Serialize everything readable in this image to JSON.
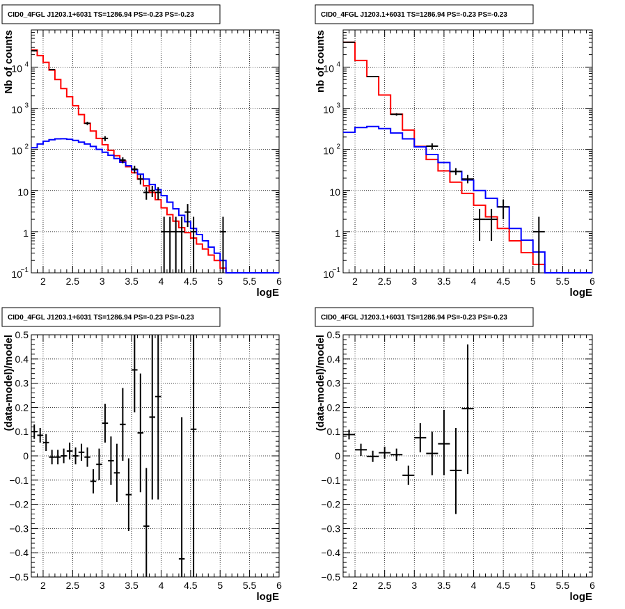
{
  "colors": {
    "data": "#000000",
    "total_model": "#ff0000",
    "component_model": "#0000ff",
    "grid": "#000000"
  },
  "chart_data": [
    {
      "type": "line",
      "title": "CID0_4FGL J1203.1+6031 TS=1286.94 PS=-0.23 PS=-0.23",
      "xlabel": "logE",
      "ylabel": "Nb of counts",
      "xlim": [
        1.8,
        6.0
      ],
      "ylim": [
        0.1,
        80000
      ],
      "y_scale": "log",
      "grid": true,
      "x_ticks": [
        2,
        2.5,
        3,
        3.5,
        4,
        4.5,
        5,
        5.5,
        6
      ],
      "x_tick_labels": [
        "2",
        "2.5",
        "3",
        "3.5",
        "4",
        "4.5",
        "5",
        "5.5",
        "6"
      ],
      "y_ticks": [
        0.1,
        1,
        10,
        100,
        1000,
        10000
      ],
      "y_tick_labels": [
        {
          "base": "10",
          "exp": "−1"
        },
        {
          "base": "1",
          "exp": ""
        },
        {
          "base": "10",
          "exp": ""
        },
        {
          "base": "10",
          "exp": "2"
        },
        {
          "base": "10",
          "exp": "3"
        },
        {
          "base": "10",
          "exp": "4"
        }
      ],
      "series": [
        {
          "style": "step",
          "color": "#ff0000",
          "edges": [
            1.8,
            1.9,
            2.0,
            2.1,
            2.2,
            2.3,
            2.4,
            2.5,
            2.6,
            2.7,
            2.8,
            2.9,
            3.0,
            3.1,
            3.2,
            3.3,
            3.4,
            3.5,
            3.6,
            3.7,
            3.8,
            3.9,
            4.0,
            4.1,
            4.2,
            4.3,
            4.4,
            4.5,
            4.6,
            4.7,
            4.8,
            4.9,
            5.0,
            5.1,
            5.2,
            5.3,
            5.4,
            5.5,
            5.6,
            5.7,
            5.8,
            5.9,
            6.0
          ],
          "values": [
            26000,
            19000,
            13000,
            8500,
            5000,
            3000,
            1900,
            1150,
            700,
            430,
            280,
            185,
            130,
            95,
            70,
            52,
            38,
            27,
            19,
            13,
            9,
            6,
            3.8,
            2.6,
            1.8,
            1.25,
            0.95,
            0.7,
            0.5,
            0.38,
            0.27,
            0.2,
            0.13,
            0.1,
            0.1,
            0.1,
            0.1,
            0.1,
            0.1,
            0.1,
            0.1,
            0.1
          ]
        },
        {
          "style": "step",
          "color": "#0000ff",
          "edges": [
            1.8,
            1.9,
            2.0,
            2.1,
            2.2,
            2.3,
            2.4,
            2.5,
            2.6,
            2.7,
            2.8,
            2.9,
            3.0,
            3.1,
            3.2,
            3.3,
            3.4,
            3.5,
            3.6,
            3.7,
            3.8,
            3.9,
            4.0,
            4.1,
            4.2,
            4.3,
            4.4,
            4.5,
            4.6,
            4.7,
            4.8,
            4.9,
            5.0,
            5.1,
            5.2,
            5.3,
            5.4,
            5.5,
            5.6,
            5.7,
            5.8,
            5.9,
            6.0
          ],
          "values": [
            110,
            135,
            158,
            172,
            180,
            181,
            176,
            165,
            150,
            135,
            118,
            100,
            85,
            72,
            60,
            49,
            40,
            32,
            25,
            19,
            14,
            10.5,
            7.5,
            5.2,
            3.6,
            2.5,
            1.75,
            1.2,
            0.85,
            0.6,
            0.42,
            0.3,
            0.2,
            0.1,
            0.1,
            0.1,
            0.1,
            0.1,
            0.1,
            0.1,
            0.1,
            0.1
          ]
        },
        {
          "style": "errorbars",
          "color": "#000000",
          "points": [
            {
              "x": 1.85,
              "y": 25000,
              "xerr": 0.05,
              "ylo": 24000,
              "yhi": 26000
            },
            {
              "x": 2.15,
              "y": 8700,
              "xerr": 0.05,
              "ylo": 8400,
              "yhi": 9000
            },
            {
              "x": 2.75,
              "y": 430,
              "xerr": 0.05,
              "ylo": 390,
              "yhi": 470
            },
            {
              "x": 3.05,
              "y": 185,
              "xerr": 0.05,
              "ylo": 160,
              "yhi": 210
            },
            {
              "x": 3.35,
              "y": 55,
              "xerr": 0.05,
              "ylo": 46,
              "yhi": 64
            },
            {
              "x": 3.55,
              "y": 33,
              "xerr": 0.05,
              "ylo": 26,
              "yhi": 40
            },
            {
              "x": 3.65,
              "y": 19,
              "xerr": 0.05,
              "ylo": 14,
              "yhi": 24
            },
            {
              "x": 3.75,
              "y": 9,
              "xerr": 0.05,
              "ylo": 6,
              "yhi": 12
            },
            {
              "x": 3.85,
              "y": 10,
              "xerr": 0.05,
              "ylo": 7,
              "yhi": 13
            },
            {
              "x": 3.95,
              "y": 9,
              "xerr": 0.05,
              "ylo": 6,
              "yhi": 12
            },
            {
              "x": 4.05,
              "y": 1,
              "xerr": 0.05,
              "ylo": 0.1,
              "yhi": 2.3
            },
            {
              "x": 4.15,
              "y": 1,
              "xerr": 0.05,
              "ylo": 0.1,
              "yhi": 2.3
            },
            {
              "x": 4.25,
              "y": 1,
              "xerr": 0.05,
              "ylo": 0.1,
              "yhi": 2.3
            },
            {
              "x": 4.35,
              "y": 1,
              "xerr": 0.05,
              "ylo": 0.1,
              "yhi": 2.3
            },
            {
              "x": 4.45,
              "y": 3,
              "xerr": 0.05,
              "ylo": 1.3,
              "yhi": 4.7
            },
            {
              "x": 4.55,
              "y": 1,
              "xerr": 0.05,
              "ylo": 0.1,
              "yhi": 2.3
            },
            {
              "x": 5.05,
              "y": 1,
              "xerr": 0.05,
              "ylo": 0.1,
              "yhi": 2.3
            }
          ]
        }
      ]
    },
    {
      "type": "line",
      "title": "CID0_4FGL J1203.1+6031 TS=1286.94 PS=-0.23 PS=-0.23",
      "xlabel": "logE",
      "ylabel": "nb of counts",
      "xlim": [
        1.8,
        6.0
      ],
      "ylim": [
        0.1,
        80000
      ],
      "y_scale": "log",
      "grid": true,
      "x_ticks": [
        2,
        2.5,
        3,
        3.5,
        4,
        4.5,
        5,
        5.5,
        6
      ],
      "x_tick_labels": [
        "2",
        "2.5",
        "3",
        "3.5",
        "4",
        "4.5",
        "5",
        "5.5",
        "6"
      ],
      "y_ticks": [
        0.1,
        1,
        10,
        100,
        1000,
        10000
      ],
      "y_tick_labels": [
        {
          "base": "10",
          "exp": "−1"
        },
        {
          "base": "1",
          "exp": ""
        },
        {
          "base": "10",
          "exp": ""
        },
        {
          "base": "10",
          "exp": "2"
        },
        {
          "base": "10",
          "exp": "3"
        },
        {
          "base": "10",
          "exp": "4"
        }
      ],
      "series": [
        {
          "style": "step",
          "color": "#ff0000",
          "edges": [
            1.8,
            2.0,
            2.2,
            2.4,
            2.6,
            2.8,
            3.0,
            3.2,
            3.4,
            3.6,
            3.8,
            4.0,
            4.2,
            4.4,
            4.6,
            4.8,
            5.0,
            5.2,
            5.4,
            5.6,
            5.8,
            6.0
          ],
          "values": [
            40000,
            14500,
            5900,
            2100,
            720,
            295,
            118,
            57,
            30,
            16,
            8.5,
            4.4,
            2.3,
            1.2,
            0.6,
            0.31,
            0.16,
            0.1,
            0.1,
            0.1,
            0.1
          ]
        },
        {
          "style": "step",
          "color": "#0000ff",
          "edges": [
            1.8,
            2.0,
            2.2,
            2.4,
            2.6,
            2.8,
            3.0,
            3.2,
            3.4,
            3.6,
            3.8,
            4.0,
            4.2,
            4.4,
            4.6,
            4.8,
            5.0,
            5.2,
            5.4,
            5.6,
            5.8,
            6.0
          ],
          "values": [
            260,
            340,
            360,
            320,
            250,
            180,
            115,
            75,
            48,
            29,
            18,
            10,
            6.5,
            4,
            1.2,
            0.62,
            0.32,
            0.1,
            0.1,
            0.1,
            0.1
          ]
        },
        {
          "style": "errorbars",
          "color": "#000000",
          "points": [
            {
              "x": 1.9,
              "y": 40000,
              "xerr": 0.1,
              "ylo": 39000,
              "yhi": 41000
            },
            {
              "x": 2.3,
              "y": 5900,
              "xerr": 0.1,
              "ylo": 5700,
              "yhi": 6100
            },
            {
              "x": 2.7,
              "y": 710,
              "xerr": 0.1,
              "ylo": 660,
              "yhi": 760
            },
            {
              "x": 3.3,
              "y": 120,
              "xerr": 0.1,
              "ylo": 100,
              "yhi": 140
            },
            {
              "x": 3.7,
              "y": 29,
              "xerr": 0.1,
              "ylo": 24,
              "yhi": 35
            },
            {
              "x": 3.9,
              "y": 19,
              "xerr": 0.1,
              "ylo": 15,
              "yhi": 24
            },
            {
              "x": 4.1,
              "y": 2,
              "xerr": 0.1,
              "ylo": 0.6,
              "yhi": 3.6
            },
            {
              "x": 4.3,
              "y": 2,
              "xerr": 0.1,
              "ylo": 0.6,
              "yhi": 3.6
            },
            {
              "x": 4.5,
              "y": 4,
              "xerr": 0.1,
              "ylo": 2,
              "yhi": 6
            },
            {
              "x": 5.1,
              "y": 1,
              "xerr": 0.1,
              "ylo": 0.1,
              "yhi": 2.3
            }
          ]
        }
      ]
    },
    {
      "type": "scatter",
      "title": "CID0_4FGL J1203.1+6031 TS=1286.94 PS=-0.23 PS=-0.23",
      "xlabel": "logE",
      "ylabel": "(data-model)/model",
      "xlim": [
        1.8,
        6.0
      ],
      "ylim": [
        -0.5,
        0.5
      ],
      "y_scale": "linear",
      "grid": true,
      "x_ticks": [
        2,
        2.5,
        3,
        3.5,
        4,
        4.5,
        5,
        5.5,
        6
      ],
      "x_tick_labels": [
        "2",
        "2.5",
        "3",
        "3.5",
        "4",
        "4.5",
        "5",
        "5.5",
        "6"
      ],
      "y_ticks": [
        -0.5,
        -0.4,
        -0.3,
        -0.2,
        -0.1,
        0,
        0.1,
        0.2,
        0.3,
        0.4,
        0.5
      ],
      "y_tick_labels": [
        "−0.5",
        "−0.4",
        "−0.3",
        "−0.2",
        "−0.1",
        "0",
        "0.1",
        "0.2",
        "0.3",
        "0.4",
        "0.5"
      ],
      "series": [
        {
          "style": "errorbars",
          "color": "#000000",
          "points": [
            {
              "x": 1.85,
              "y": 0.1,
              "xerr": 0.05,
              "ylo": 0.07,
              "yhi": 0.13
            },
            {
              "x": 1.95,
              "y": 0.085,
              "xerr": 0.05,
              "ylo": 0.055,
              "yhi": 0.115
            },
            {
              "x": 2.05,
              "y": 0.055,
              "xerr": 0.05,
              "ylo": 0.02,
              "yhi": 0.09
            },
            {
              "x": 2.15,
              "y": -0.005,
              "xerr": 0.05,
              "ylo": -0.035,
              "yhi": 0.025
            },
            {
              "x": 2.25,
              "y": -0.005,
              "xerr": 0.05,
              "ylo": -0.035,
              "yhi": 0.025
            },
            {
              "x": 2.35,
              "y": 0.0,
              "xerr": 0.05,
              "ylo": -0.03,
              "yhi": 0.03
            },
            {
              "x": 2.45,
              "y": 0.02,
              "xerr": 0.05,
              "ylo": -0.015,
              "yhi": 0.055
            },
            {
              "x": 2.55,
              "y": 0.0,
              "xerr": 0.05,
              "ylo": -0.035,
              "yhi": 0.035
            },
            {
              "x": 2.65,
              "y": 0.015,
              "xerr": 0.05,
              "ylo": -0.02,
              "yhi": 0.05
            },
            {
              "x": 2.75,
              "y": -0.005,
              "xerr": 0.05,
              "ylo": -0.045,
              "yhi": 0.035
            },
            {
              "x": 2.85,
              "y": -0.105,
              "xerr": 0.05,
              "ylo": -0.155,
              "yhi": -0.055
            },
            {
              "x": 2.95,
              "y": -0.035,
              "xerr": 0.05,
              "ylo": -0.1,
              "yhi": 0.03
            },
            {
              "x": 3.05,
              "y": 0.135,
              "xerr": 0.05,
              "ylo": 0.055,
              "yhi": 0.215
            },
            {
              "x": 3.15,
              "y": -0.02,
              "xerr": 0.05,
              "ylo": -0.12,
              "yhi": 0.08
            },
            {
              "x": 3.25,
              "y": -0.07,
              "xerr": 0.05,
              "ylo": -0.19,
              "yhi": 0.05
            },
            {
              "x": 3.35,
              "y": 0.13,
              "xerr": 0.05,
              "ylo": -0.02,
              "yhi": 0.28
            },
            {
              "x": 3.45,
              "y": -0.16,
              "xerr": 0.05,
              "ylo": -0.31,
              "yhi": -0.01
            },
            {
              "x": 3.55,
              "y": 0.355,
              "xerr": 0.05,
              "ylo": 0.18,
              "yhi": 0.5
            },
            {
              "x": 3.65,
              "y": 0.095,
              "xerr": 0.05,
              "ylo": -0.15,
              "yhi": 0.34
            },
            {
              "x": 3.75,
              "y": -0.29,
              "xerr": 0.05,
              "ylo": -0.5,
              "yhi": -0.05
            },
            {
              "x": 3.85,
              "y": 0.16,
              "xerr": 0.05,
              "ylo": -0.18,
              "yhi": 0.5
            },
            {
              "x": 3.95,
              "y": 0.245,
              "xerr": 0.05,
              "ylo": -0.18,
              "yhi": 0.5
            },
            {
              "x": 4.35,
              "y": -0.425,
              "xerr": 0.05,
              "ylo": -0.5,
              "yhi": 0.16
            },
            {
              "x": 4.55,
              "y": 0.11,
              "xerr": 0.05,
              "ylo": -0.5,
              "yhi": 0.5
            }
          ]
        }
      ]
    },
    {
      "type": "scatter",
      "title": "CID0_4FGL J1203.1+6031 TS=1286.94 PS=-0.23 PS=-0.23",
      "xlabel": "logE",
      "ylabel": "(data-model)/model",
      "xlim": [
        1.8,
        6.0
      ],
      "ylim": [
        -0.5,
        0.5
      ],
      "y_scale": "linear",
      "grid": true,
      "x_ticks": [
        2,
        2.5,
        3,
        3.5,
        4,
        4.5,
        5,
        5.5,
        6
      ],
      "x_tick_labels": [
        "2",
        "2.5",
        "3",
        "3.5",
        "4",
        "4.5",
        "5",
        "5.5",
        "6"
      ],
      "y_ticks": [
        -0.5,
        -0.4,
        -0.3,
        -0.2,
        -0.1,
        0,
        0.1,
        0.2,
        0.3,
        0.4,
        0.5
      ],
      "y_tick_labels": [
        "−0.5",
        "−0.4",
        "−0.3",
        "−0.2",
        "−0.1",
        "0",
        "0.1",
        "0.2",
        "0.3",
        "0.4",
        "0.5"
      ],
      "series": [
        {
          "style": "errorbars",
          "color": "#000000",
          "points": [
            {
              "x": 1.9,
              "y": 0.088,
              "xerr": 0.1,
              "ylo": 0.068,
              "yhi": 0.108
            },
            {
              "x": 2.1,
              "y": 0.025,
              "xerr": 0.1,
              "ylo": 0.0,
              "yhi": 0.05
            },
            {
              "x": 2.3,
              "y": -0.002,
              "xerr": 0.1,
              "ylo": -0.025,
              "yhi": 0.021
            },
            {
              "x": 2.5,
              "y": 0.013,
              "xerr": 0.1,
              "ylo": -0.012,
              "yhi": 0.038
            },
            {
              "x": 2.7,
              "y": 0.005,
              "xerr": 0.1,
              "ylo": -0.02,
              "yhi": 0.03
            },
            {
              "x": 2.9,
              "y": -0.08,
              "xerr": 0.1,
              "ylo": -0.12,
              "yhi": -0.04
            },
            {
              "x": 3.1,
              "y": 0.075,
              "xerr": 0.1,
              "ylo": 0.015,
              "yhi": 0.135
            },
            {
              "x": 3.3,
              "y": 0.01,
              "xerr": 0.1,
              "ylo": -0.08,
              "yhi": 0.1
            },
            {
              "x": 3.5,
              "y": 0.05,
              "xerr": 0.1,
              "ylo": -0.08,
              "yhi": 0.19
            },
            {
              "x": 3.7,
              "y": -0.06,
              "xerr": 0.1,
              "ylo": -0.24,
              "yhi": 0.115
            },
            {
              "x": 3.9,
              "y": 0.195,
              "xerr": 0.1,
              "ylo": -0.075,
              "yhi": 0.46
            }
          ]
        }
      ]
    }
  ]
}
